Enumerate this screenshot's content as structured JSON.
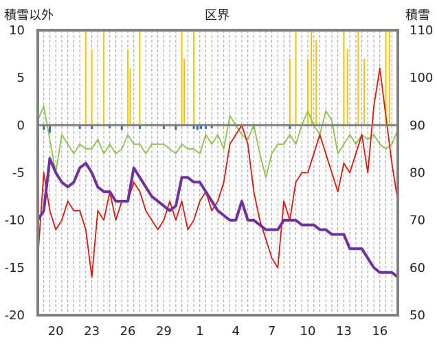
{
  "chart_data": {
    "type": "line",
    "title": "区界",
    "left_axis_label": "積雪以外",
    "right_axis_label": "積雪",
    "left_ylim": [
      -20,
      10
    ],
    "left_ticks": [
      10,
      5,
      0,
      -5,
      -10,
      -15,
      -20
    ],
    "right_ylim": [
      50,
      110
    ],
    "right_ticks": [
      110,
      100,
      90,
      80,
      70,
      60,
      50
    ],
    "x_tick_labels": [
      "20",
      "23",
      "26",
      "29",
      "1",
      "4",
      "7",
      "10",
      "13",
      "16"
    ],
    "x_range_days": [
      0,
      30
    ],
    "x_tick_days": [
      1.5,
      4.5,
      7.5,
      10.5,
      13.5,
      16.5,
      19.5,
      22.5,
      25.5,
      28.5
    ],
    "gridlines": "vertical dashed every 12 hours",
    "series": [
      {
        "axis": "left",
        "style": "line",
        "color": "#8BC34A",
        "x": [
          0,
          0.5,
          1,
          1.5,
          2,
          2.5,
          3,
          3.5,
          4,
          4.5,
          5,
          5.5,
          6,
          6.5,
          7,
          7.5,
          8,
          8.5,
          9,
          9.5,
          10,
          10.5,
          11,
          11.5,
          12,
          12.5,
          13,
          13.5,
          14,
          14.5,
          15,
          15.5,
          16,
          16.5,
          17,
          17.5,
          18,
          18.5,
          19,
          19.5,
          20,
          20.5,
          21,
          21.5,
          22,
          22.5,
          23,
          23.5,
          24,
          24.5,
          25,
          25.5,
          26,
          26.5,
          27,
          27.5,
          28,
          28.5,
          29,
          29.5,
          30
        ],
        "values": [
          0.5,
          2,
          -1.5,
          -5,
          -1,
          -2,
          -3,
          -2,
          -2.5,
          -2.5,
          -1.5,
          -3,
          -2,
          -3,
          -2.5,
          -1,
          -2,
          -2,
          -3,
          -2,
          -2,
          -2,
          -2.5,
          -3,
          -2,
          -2.5,
          -2.5,
          -3,
          -1,
          -2,
          -1,
          -2.5,
          1,
          0,
          -1,
          -1.5,
          0,
          -3,
          -5.5,
          -3,
          -2,
          -2,
          -1,
          -2,
          0,
          1.5,
          0,
          -1,
          1.5,
          0.5,
          -3,
          -2,
          -1,
          -2,
          -1,
          -1.5,
          -1,
          -2,
          -2.5,
          -2,
          -0.5
        ]
      },
      {
        "axis": "left",
        "style": "line",
        "color": "#E8130C",
        "x": [
          0,
          0.5,
          1,
          1.5,
          2,
          2.5,
          3,
          3.5,
          4,
          4.5,
          5,
          5.5,
          6,
          6.5,
          7,
          7.5,
          8,
          8.5,
          9,
          9.5,
          10,
          10.5,
          11,
          11.5,
          12,
          12.5,
          13,
          13.5,
          14,
          14.5,
          15,
          15.5,
          16,
          16.5,
          17,
          17.5,
          18,
          18.5,
          19,
          19.5,
          20,
          20.5,
          21,
          21.5,
          22,
          22.5,
          23,
          23.5,
          24,
          24.5,
          25,
          25.5,
          26,
          26.5,
          27,
          27.5,
          28,
          28.5,
          29,
          29.5,
          30
        ],
        "values": [
          -14,
          -5,
          -9,
          -11,
          -10,
          -8,
          -9,
          -9,
          -11,
          -16,
          -9,
          -10,
          -7,
          -10,
          -8,
          -8,
          -6,
          -7,
          -9,
          -10,
          -11,
          -10,
          -8,
          -10,
          -8,
          -11,
          -10,
          -8,
          -7,
          -9,
          -8,
          -6,
          -2,
          -1,
          0,
          -2,
          -7,
          -10,
          -12,
          -14,
          -15,
          -8,
          -10,
          -6,
          -5,
          -5,
          -3,
          -1,
          -3,
          -5,
          -7,
          -4,
          -5,
          -3,
          -1,
          -5,
          2,
          6,
          1,
          -4,
          -8
        ]
      },
      {
        "axis": "right",
        "style": "thick line",
        "color": "#7030A0",
        "x": [
          0,
          0.5,
          1,
          1.5,
          2,
          2.5,
          3,
          3.5,
          4,
          4.5,
          5,
          5.5,
          6,
          6.5,
          7,
          7.5,
          8,
          8.5,
          9,
          9.5,
          10,
          10.5,
          11,
          11.5,
          12,
          12.5,
          13,
          13.5,
          14,
          14.5,
          15,
          15.5,
          16,
          16.5,
          17,
          17.5,
          18,
          18.5,
          19,
          19.5,
          20,
          20.5,
          21,
          21.5,
          22,
          22.5,
          23,
          23.5,
          24,
          24.5,
          25,
          25.5,
          26,
          26.5,
          27,
          27.5,
          28,
          28.5,
          29,
          29.5,
          30
        ],
        "values": [
          70,
          72,
          83,
          80,
          78,
          77,
          78,
          81,
          82,
          80,
          77,
          76,
          76,
          74,
          74,
          74,
          81,
          79,
          77,
          75,
          74,
          73,
          72,
          73,
          79,
          79,
          78,
          78,
          76,
          74,
          72,
          71,
          70,
          70,
          74,
          70,
          70,
          69,
          68,
          68,
          68,
          70,
          70,
          70,
          69,
          69,
          69,
          68,
          68,
          67,
          67,
          67,
          64,
          64,
          64,
          62,
          60,
          59,
          59,
          59,
          58
        ]
      },
      {
        "axis": "left",
        "style": "bars",
        "color": "#FFC000",
        "x": [
          4,
          4.5,
          5.5,
          7.5,
          7.7,
          8.5,
          12,
          12.2,
          13,
          21,
          21.5,
          22.5,
          22.8,
          23.2,
          25.5,
          25.8,
          26.7,
          27.2,
          29,
          29.3
        ],
        "values": [
          10,
          8,
          10,
          8,
          6,
          10,
          10,
          7,
          10,
          7,
          10,
          7,
          10,
          9,
          10,
          8,
          10,
          7,
          10,
          10
        ]
      },
      {
        "axis": "left",
        "style": "bars",
        "color": "#2E75B6",
        "x": [
          0.5,
          1,
          3.5,
          4.5,
          6,
          7,
          8.5,
          10.5,
          11.5,
          13,
          13.3,
          13.6,
          14,
          14.5,
          18,
          21
        ],
        "values": [
          -0.5,
          -0.8,
          -0.4,
          -0.4,
          -0.3,
          -0.5,
          -0.4,
          -0.4,
          -0.5,
          -0.4,
          -0.5,
          -0.4,
          -0.4,
          -0.3,
          -0.4,
          -0.4
        ]
      }
    ]
  }
}
